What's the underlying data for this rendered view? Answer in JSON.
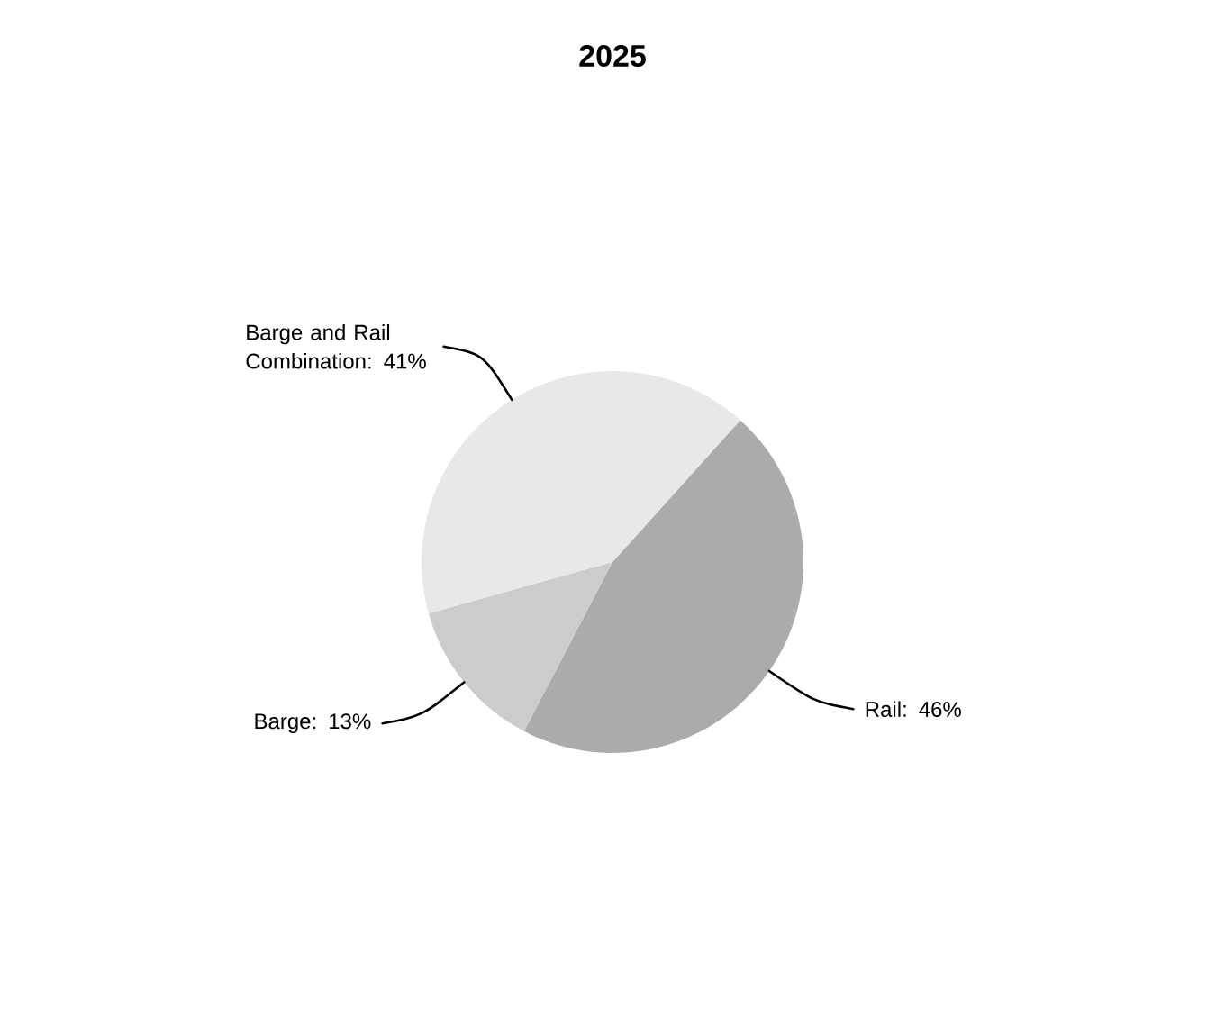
{
  "chart_data": {
    "type": "pie",
    "title": "2025",
    "categories": [
      "Rail",
      "Barge",
      "Barge and Rail Combination"
    ],
    "values": [
      46,
      13,
      41
    ],
    "colors": [
      "#ababab",
      "#cccccc",
      "#e8e8e8"
    ],
    "value_labels": [
      ": 46%",
      ": 13%",
      ": 41%"
    ]
  }
}
